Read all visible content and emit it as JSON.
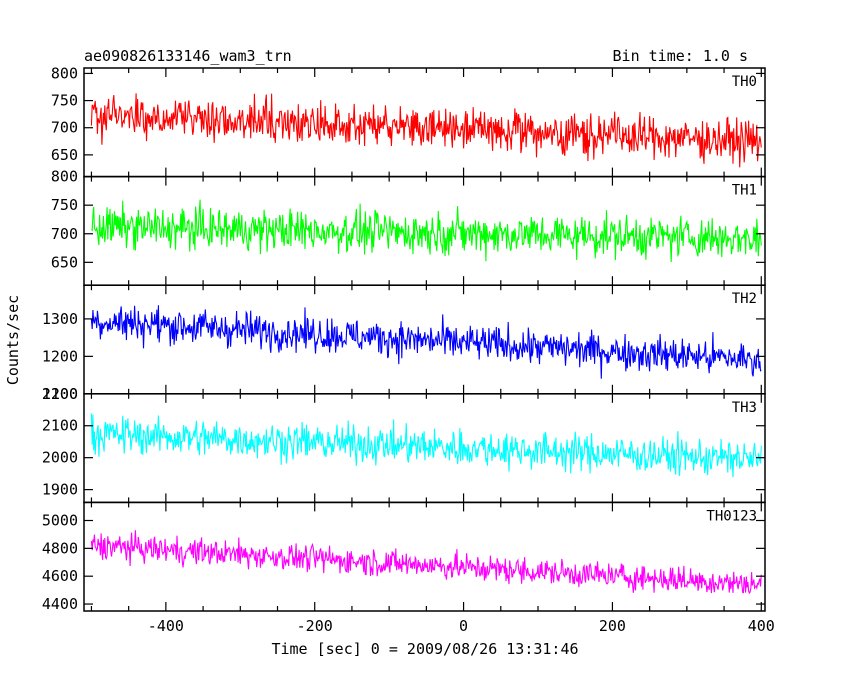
{
  "chart_data": {
    "type": "line",
    "title": "ae090826133146_wam3_trn",
    "subtitle": "Bin time: 1.0 s",
    "xlabel": "Time [sec] 0 = 2009/08/26 13:31:46",
    "ylabel": "Counts/sec",
    "xlim": [
      -510,
      405
    ],
    "x_ticks": [
      -400,
      -200,
      0,
      200,
      400
    ],
    "grid": false,
    "panels": [
      {
        "name": "TH0",
        "color": "#ff0000",
        "ylim": [
          610,
          810
        ],
        "y_ticks": [
          650,
          700,
          750,
          800
        ],
        "trend_start": 725,
        "trend_end": 675,
        "noise": 32
      },
      {
        "name": "TH1",
        "color": "#00ff00",
        "ylim": [
          610,
          800
        ],
        "y_ticks": [
          650,
          700,
          750,
          800
        ],
        "trend_start": 712,
        "trend_end": 692,
        "noise": 30
      },
      {
        "name": "TH2",
        "color": "#0000ff",
        "ylim": [
          1100,
          1390
        ],
        "y_ticks": [
          1100,
          1200,
          1300
        ],
        "trend_start": 1295,
        "trend_end": 1190,
        "noise": 40
      },
      {
        "name": "TH3",
        "color": "#00ffff",
        "ylim": [
          1860,
          2200
        ],
        "y_ticks": [
          1900,
          2000,
          2100,
          2200
        ],
        "trend_start": 2075,
        "trend_end": 1995,
        "noise": 48
      },
      {
        "name": "TH0123",
        "color": "#ff00ff",
        "ylim": [
          4350,
          5130
        ],
        "y_ticks": [
          4400,
          4600,
          4800,
          5000
        ],
        "trend_start": 4820,
        "trend_end": 4540,
        "noise": 80
      }
    ],
    "series_x_range": [
      -500,
      400
    ],
    "bin_step": 1
  }
}
